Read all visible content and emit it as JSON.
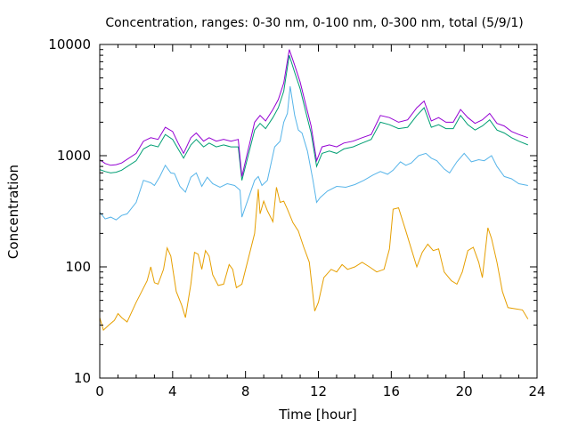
{
  "chart_data": {
    "type": "line",
    "title": "Concentration, ranges: 0-30 nm, 0-100 nm, 0-300 nm, total (5/9/1)",
    "xlabel": "Time [hour]",
    "ylabel": "Concentration",
    "xlim": [
      0,
      24
    ],
    "ylim": [
      10,
      10000
    ],
    "yscale": "log",
    "xticks": [
      0,
      4,
      8,
      12,
      16,
      20,
      24
    ],
    "yticks": [
      10,
      100,
      1000,
      10000
    ],
    "xtick_labels": [
      "0",
      "4",
      "8",
      "12",
      "16",
      "20",
      "24"
    ],
    "ytick_labels": [
      "10",
      "100",
      "1000",
      "10000"
    ],
    "grid": false,
    "legend": "none",
    "series": [
      {
        "color": "#e69f00",
        "points": [
          [
            0,
            35
          ],
          [
            0.2,
            27
          ],
          [
            0.5,
            30
          ],
          [
            0.8,
            33
          ],
          [
            1.0,
            38
          ],
          [
            1.2,
            35
          ],
          [
            1.5,
            32
          ],
          [
            2.0,
            48
          ],
          [
            2.3,
            60
          ],
          [
            2.6,
            75
          ],
          [
            2.8,
            100
          ],
          [
            3.0,
            72
          ],
          [
            3.2,
            70
          ],
          [
            3.5,
            95
          ],
          [
            3.7,
            148
          ],
          [
            3.9,
            125
          ],
          [
            4.2,
            60
          ],
          [
            4.5,
            45
          ],
          [
            4.7,
            35
          ],
          [
            5.0,
            70
          ],
          [
            5.2,
            135
          ],
          [
            5.4,
            130
          ],
          [
            5.6,
            95
          ],
          [
            5.8,
            140
          ],
          [
            6.0,
            125
          ],
          [
            6.2,
            85
          ],
          [
            6.5,
            68
          ],
          [
            6.8,
            70
          ],
          [
            7.1,
            105
          ],
          [
            7.3,
            95
          ],
          [
            7.5,
            65
          ],
          [
            7.8,
            70
          ],
          [
            8.5,
            200
          ],
          [
            8.7,
            500
          ],
          [
            8.8,
            300
          ],
          [
            9.0,
            390
          ],
          [
            9.2,
            320
          ],
          [
            9.5,
            255
          ],
          [
            9.7,
            520
          ],
          [
            9.9,
            380
          ],
          [
            10.1,
            390
          ],
          [
            10.3,
            330
          ],
          [
            10.6,
            250
          ],
          [
            10.9,
            210
          ],
          [
            11.2,
            150
          ],
          [
            11.5,
            110
          ],
          [
            11.8,
            40
          ],
          [
            12.0,
            48
          ],
          [
            12.3,
            80
          ],
          [
            12.7,
            95
          ],
          [
            13.0,
            90
          ],
          [
            13.3,
            105
          ],
          [
            13.6,
            95
          ],
          [
            14.0,
            100
          ],
          [
            14.4,
            110
          ],
          [
            14.8,
            100
          ],
          [
            15.2,
            90
          ],
          [
            15.6,
            95
          ],
          [
            15.9,
            145
          ],
          [
            16.1,
            330
          ],
          [
            16.4,
            340
          ],
          [
            16.8,
            210
          ],
          [
            17.1,
            145
          ],
          [
            17.4,
            100
          ],
          [
            17.7,
            135
          ],
          [
            18.0,
            160
          ],
          [
            18.3,
            140
          ],
          [
            18.6,
            145
          ],
          [
            18.9,
            90
          ],
          [
            19.3,
            75
          ],
          [
            19.6,
            70
          ],
          [
            19.9,
            90
          ],
          [
            20.2,
            140
          ],
          [
            20.5,
            150
          ],
          [
            20.8,
            110
          ],
          [
            21.0,
            80
          ],
          [
            21.3,
            225
          ],
          [
            21.5,
            180
          ],
          [
            21.8,
            110
          ],
          [
            22.1,
            60
          ],
          [
            22.4,
            43
          ],
          [
            22.8,
            42
          ],
          [
            23.2,
            41
          ],
          [
            23.5,
            34
          ]
        ]
      },
      {
        "color": "#56b4e9",
        "points": [
          [
            0,
            310
          ],
          [
            0.3,
            270
          ],
          [
            0.6,
            280
          ],
          [
            0.9,
            265
          ],
          [
            1.2,
            290
          ],
          [
            1.5,
            300
          ],
          [
            2.0,
            380
          ],
          [
            2.4,
            600
          ],
          [
            2.8,
            570
          ],
          [
            3.0,
            540
          ],
          [
            3.3,
            650
          ],
          [
            3.6,
            820
          ],
          [
            3.9,
            700
          ],
          [
            4.1,
            690
          ],
          [
            4.4,
            530
          ],
          [
            4.7,
            470
          ],
          [
            5.0,
            640
          ],
          [
            5.3,
            700
          ],
          [
            5.6,
            530
          ],
          [
            5.9,
            640
          ],
          [
            6.2,
            560
          ],
          [
            6.6,
            520
          ],
          [
            7.0,
            560
          ],
          [
            7.4,
            540
          ],
          [
            7.7,
            490
          ],
          [
            7.8,
            280
          ],
          [
            8.5,
            600
          ],
          [
            8.7,
            650
          ],
          [
            8.9,
            540
          ],
          [
            9.2,
            600
          ],
          [
            9.6,
            1200
          ],
          [
            9.9,
            1350
          ],
          [
            10.1,
            2000
          ],
          [
            10.3,
            2400
          ],
          [
            10.45,
            4200
          ],
          [
            10.7,
            2300
          ],
          [
            10.9,
            1700
          ],
          [
            11.1,
            1600
          ],
          [
            11.4,
            1100
          ],
          [
            11.7,
            600
          ],
          [
            11.9,
            380
          ],
          [
            12.1,
            420
          ],
          [
            12.5,
            480
          ],
          [
            13.0,
            530
          ],
          [
            13.5,
            520
          ],
          [
            14.0,
            550
          ],
          [
            14.5,
            600
          ],
          [
            15.0,
            670
          ],
          [
            15.4,
            720
          ],
          [
            15.8,
            680
          ],
          [
            16.1,
            740
          ],
          [
            16.5,
            880
          ],
          [
            16.8,
            820
          ],
          [
            17.1,
            860
          ],
          [
            17.5,
            1000
          ],
          [
            17.9,
            1050
          ],
          [
            18.2,
            950
          ],
          [
            18.5,
            900
          ],
          [
            18.9,
            760
          ],
          [
            19.2,
            700
          ],
          [
            19.6,
            880
          ],
          [
            20.0,
            1050
          ],
          [
            20.4,
            880
          ],
          [
            20.8,
            920
          ],
          [
            21.1,
            900
          ],
          [
            21.5,
            1000
          ],
          [
            21.8,
            800
          ],
          [
            22.2,
            650
          ],
          [
            22.6,
            620
          ],
          [
            23.0,
            560
          ],
          [
            23.5,
            540
          ]
        ]
      },
      {
        "color": "#009e73",
        "points": [
          [
            0,
            750
          ],
          [
            0.3,
            720
          ],
          [
            0.6,
            700
          ],
          [
            0.9,
            710
          ],
          [
            1.2,
            740
          ],
          [
            2.0,
            900
          ],
          [
            2.4,
            1150
          ],
          [
            2.8,
            1250
          ],
          [
            3.2,
            1200
          ],
          [
            3.6,
            1550
          ],
          [
            4.0,
            1400
          ],
          [
            4.3,
            1150
          ],
          [
            4.6,
            950
          ],
          [
            5.0,
            1250
          ],
          [
            5.3,
            1400
          ],
          [
            5.7,
            1200
          ],
          [
            6.0,
            1300
          ],
          [
            6.4,
            1200
          ],
          [
            6.8,
            1250
          ],
          [
            7.2,
            1200
          ],
          [
            7.6,
            1200
          ],
          [
            7.8,
            600
          ],
          [
            8.5,
            1700
          ],
          [
            8.8,
            1950
          ],
          [
            9.1,
            1750
          ],
          [
            9.5,
            2200
          ],
          [
            9.8,
            2700
          ],
          [
            10.1,
            3800
          ],
          [
            10.4,
            8000
          ],
          [
            10.7,
            5600
          ],
          [
            11.0,
            4000
          ],
          [
            11.3,
            2500
          ],
          [
            11.6,
            1600
          ],
          [
            11.9,
            800
          ],
          [
            12.2,
            1050
          ],
          [
            12.6,
            1100
          ],
          [
            13.0,
            1050
          ],
          [
            13.4,
            1150
          ],
          [
            13.9,
            1200
          ],
          [
            14.4,
            1300
          ],
          [
            14.9,
            1400
          ],
          [
            15.4,
            2000
          ],
          [
            15.9,
            1900
          ],
          [
            16.4,
            1750
          ],
          [
            16.9,
            1800
          ],
          [
            17.4,
            2300
          ],
          [
            17.8,
            2700
          ],
          [
            18.2,
            1800
          ],
          [
            18.6,
            1900
          ],
          [
            19.0,
            1750
          ],
          [
            19.4,
            1750
          ],
          [
            19.8,
            2300
          ],
          [
            20.2,
            1900
          ],
          [
            20.6,
            1700
          ],
          [
            21.0,
            1850
          ],
          [
            21.4,
            2100
          ],
          [
            21.8,
            1700
          ],
          [
            22.2,
            1600
          ],
          [
            22.6,
            1450
          ],
          [
            23.0,
            1350
          ],
          [
            23.5,
            1250
          ]
        ]
      },
      {
        "color": "#9400d3",
        "points": [
          [
            0,
            920
          ],
          [
            0.3,
            850
          ],
          [
            0.6,
            820
          ],
          [
            0.9,
            830
          ],
          [
            1.2,
            860
          ],
          [
            2.0,
            1050
          ],
          [
            2.4,
            1350
          ],
          [
            2.8,
            1450
          ],
          [
            3.2,
            1400
          ],
          [
            3.6,
            1800
          ],
          [
            4.0,
            1650
          ],
          [
            4.3,
            1300
          ],
          [
            4.6,
            1050
          ],
          [
            5.0,
            1450
          ],
          [
            5.3,
            1600
          ],
          [
            5.7,
            1350
          ],
          [
            6.0,
            1450
          ],
          [
            6.4,
            1350
          ],
          [
            6.8,
            1400
          ],
          [
            7.2,
            1350
          ],
          [
            7.6,
            1400
          ],
          [
            7.8,
            650
          ],
          [
            8.5,
            2000
          ],
          [
            8.8,
            2300
          ],
          [
            9.1,
            2050
          ],
          [
            9.5,
            2600
          ],
          [
            9.8,
            3200
          ],
          [
            10.1,
            4500
          ],
          [
            10.4,
            9000
          ],
          [
            10.7,
            6500
          ],
          [
            11.0,
            4600
          ],
          [
            11.3,
            2900
          ],
          [
            11.6,
            1850
          ],
          [
            11.9,
            900
          ],
          [
            12.2,
            1200
          ],
          [
            12.6,
            1250
          ],
          [
            13.0,
            1200
          ],
          [
            13.4,
            1300
          ],
          [
            13.9,
            1350
          ],
          [
            14.4,
            1450
          ],
          [
            14.9,
            1550
          ],
          [
            15.4,
            2300
          ],
          [
            15.9,
            2200
          ],
          [
            16.4,
            2000
          ],
          [
            16.9,
            2100
          ],
          [
            17.4,
            2700
          ],
          [
            17.8,
            3100
          ],
          [
            18.2,
            2050
          ],
          [
            18.6,
            2200
          ],
          [
            19.0,
            2000
          ],
          [
            19.4,
            2000
          ],
          [
            19.8,
            2600
          ],
          [
            20.2,
            2200
          ],
          [
            20.6,
            1950
          ],
          [
            21.0,
            2100
          ],
          [
            21.4,
            2400
          ],
          [
            21.8,
            1950
          ],
          [
            22.2,
            1850
          ],
          [
            22.6,
            1650
          ],
          [
            23.0,
            1550
          ],
          [
            23.5,
            1450
          ]
        ]
      }
    ]
  }
}
